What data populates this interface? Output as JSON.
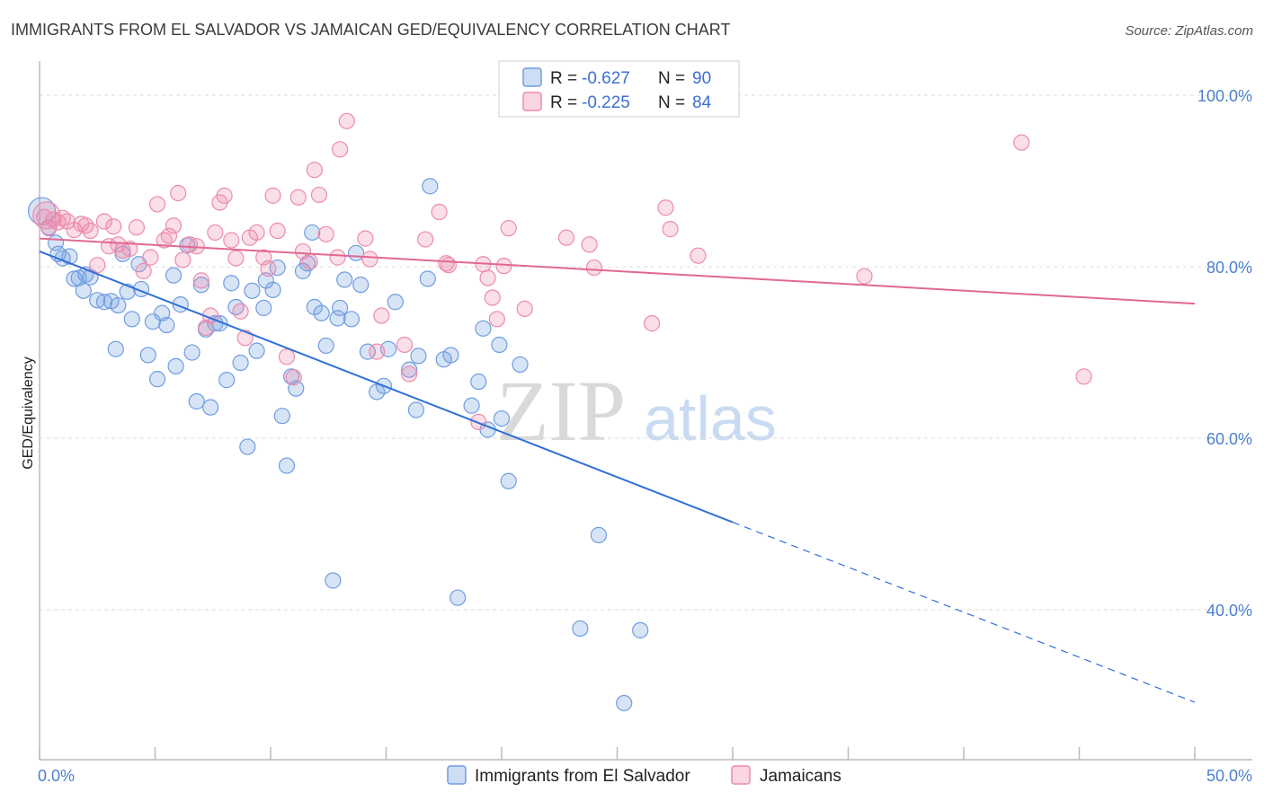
{
  "chart_data": {
    "type": "scatter",
    "title": "IMMIGRANTS FROM EL SALVADOR VS JAMAICAN GED/EQUIVALENCY CORRELATION CHART",
    "source": "Source: ZipAtlas.com",
    "ylabel": "GED/Equivalency",
    "xlim": [
      0,
      50
    ],
    "ylim": [
      22.5,
      104
    ],
    "x_tick_labels": [
      {
        "value": 0,
        "label": "0.0%"
      },
      {
        "value": 50,
        "label": "50.0%"
      }
    ],
    "y_tick_labels": [
      {
        "value": 100,
        "label": "100.0%"
      },
      {
        "value": 80,
        "label": "80.0%"
      },
      {
        "value": 60,
        "label": "60.0%"
      },
      {
        "value": 40,
        "label": "40.0%"
      }
    ],
    "legend_stats": [
      {
        "r_label": "R = ",
        "r_value": "-0.627",
        "n_label": "N = ",
        "n_value": "90",
        "color": "#6f9de0"
      },
      {
        "r_label": "R = ",
        "r_value": "-0.225",
        "n_label": "N = ",
        "n_value": "84",
        "color": "#ee8aac"
      }
    ],
    "watermark": {
      "zip": "ZIP",
      "atlas": "atlas"
    },
    "series": [
      {
        "name": "Immigrants from El Salvador",
        "color": "#6f9de0",
        "fill": "rgba(111,157,224,0.28)",
        "trend": {
          "x0": 0,
          "y0": 81.8,
          "x1": 30,
          "y1": 50.2,
          "dash_x1": 50,
          "dash_y1": 29.2
        },
        "points": [
          [
            0.1,
            86.5
          ],
          [
            0.7,
            82.8
          ],
          [
            0.8,
            81.5
          ],
          [
            1.0,
            81.0
          ],
          [
            1.3,
            81.2
          ],
          [
            1.5,
            78.6
          ],
          [
            1.7,
            78.7
          ],
          [
            1.9,
            77.2
          ],
          [
            2.2,
            78.8
          ],
          [
            2.5,
            76.1
          ],
          [
            2.8,
            75.9
          ],
          [
            3.1,
            76.0
          ],
          [
            3.4,
            75.5
          ],
          [
            3.6,
            81.5
          ],
          [
            3.3,
            70.4
          ],
          [
            3.8,
            77.1
          ],
          [
            4.0,
            73.9
          ],
          [
            4.3,
            80.3
          ],
          [
            4.4,
            77.4
          ],
          [
            4.7,
            69.7
          ],
          [
            4.9,
            73.6
          ],
          [
            5.1,
            66.9
          ],
          [
            5.3,
            74.6
          ],
          [
            5.5,
            73.2
          ],
          [
            5.8,
            79.0
          ],
          [
            5.9,
            68.4
          ],
          [
            6.1,
            75.6
          ],
          [
            6.4,
            82.5
          ],
          [
            6.6,
            70.0
          ],
          [
            6.8,
            64.3
          ],
          [
            7.0,
            77.9
          ],
          [
            7.2,
            72.7
          ],
          [
            7.4,
            63.6
          ],
          [
            7.6,
            73.4
          ],
          [
            7.8,
            73.4
          ],
          [
            8.1,
            66.8
          ],
          [
            8.3,
            78.1
          ],
          [
            8.5,
            75.3
          ],
          [
            8.7,
            68.8
          ],
          [
            9.0,
            59.0
          ],
          [
            9.2,
            77.2
          ],
          [
            9.4,
            70.2
          ],
          [
            9.7,
            75.2
          ],
          [
            9.8,
            78.4
          ],
          [
            10.1,
            77.3
          ],
          [
            10.3,
            79.9
          ],
          [
            10.5,
            62.6
          ],
          [
            10.7,
            56.8
          ],
          [
            10.9,
            67.2
          ],
          [
            11.1,
            65.8
          ],
          [
            11.4,
            79.5
          ],
          [
            11.6,
            80.4
          ],
          [
            11.8,
            84.0
          ],
          [
            11.9,
            75.3
          ],
          [
            12.2,
            74.6
          ],
          [
            12.4,
            70.8
          ],
          [
            12.7,
            43.4
          ],
          [
            12.9,
            74.0
          ],
          [
            13.0,
            75.2
          ],
          [
            13.2,
            78.5
          ],
          [
            13.5,
            73.9
          ],
          [
            13.7,
            81.6
          ],
          [
            13.9,
            77.9
          ],
          [
            14.2,
            70.1
          ],
          [
            14.6,
            65.4
          ],
          [
            14.9,
            66.1
          ],
          [
            15.1,
            70.4
          ],
          [
            15.4,
            75.9
          ],
          [
            16.0,
            68.0
          ],
          [
            16.3,
            63.3
          ],
          [
            16.4,
            69.6
          ],
          [
            16.8,
            78.6
          ],
          [
            16.9,
            89.4
          ],
          [
            17.5,
            69.2
          ],
          [
            17.8,
            69.7
          ],
          [
            18.1,
            41.4
          ],
          [
            18.7,
            63.8
          ],
          [
            19.0,
            66.6
          ],
          [
            19.2,
            72.8
          ],
          [
            19.4,
            61.0
          ],
          [
            19.9,
            70.9
          ],
          [
            20.0,
            62.3
          ],
          [
            20.3,
            55.0
          ],
          [
            20.8,
            68.6
          ],
          [
            23.4,
            37.8
          ],
          [
            24.2,
            48.7
          ],
          [
            25.3,
            29.1
          ],
          [
            26.0,
            37.6
          ],
          [
            0.4,
            84.6
          ],
          [
            2.0,
            79.1
          ]
        ]
      },
      {
        "name": "Jamaicans",
        "color": "#ee8aac",
        "fill": "rgba(238,138,172,0.28)",
        "trend": {
          "x0": 0,
          "y0": 83.3,
          "x1": 50,
          "y1": 75.7
        },
        "points": [
          [
            0.2,
            85.8
          ],
          [
            0.4,
            84.5
          ],
          [
            0.6,
            85.5
          ],
          [
            0.8,
            85.2
          ],
          [
            1.0,
            85.7
          ],
          [
            1.2,
            85.3
          ],
          [
            1.5,
            84.3
          ],
          [
            1.8,
            85.0
          ],
          [
            2.0,
            84.8
          ],
          [
            2.2,
            84.2
          ],
          [
            2.5,
            80.2
          ],
          [
            2.8,
            85.3
          ],
          [
            3.0,
            82.4
          ],
          [
            3.2,
            84.7
          ],
          [
            3.4,
            82.6
          ],
          [
            3.6,
            81.9
          ],
          [
            3.9,
            82.1
          ],
          [
            4.2,
            84.6
          ],
          [
            4.5,
            79.5
          ],
          [
            4.8,
            81.1
          ],
          [
            5.1,
            87.3
          ],
          [
            5.4,
            83.1
          ],
          [
            5.6,
            83.6
          ],
          [
            5.8,
            84.8
          ],
          [
            6.0,
            88.6
          ],
          [
            6.2,
            80.8
          ],
          [
            6.5,
            82.6
          ],
          [
            6.8,
            82.4
          ],
          [
            7.0,
            78.4
          ],
          [
            7.2,
            72.9
          ],
          [
            7.4,
            74.3
          ],
          [
            7.6,
            84.0
          ],
          [
            7.8,
            87.5
          ],
          [
            8.0,
            88.3
          ],
          [
            8.3,
            83.1
          ],
          [
            8.5,
            81.0
          ],
          [
            8.7,
            74.8
          ],
          [
            8.9,
            71.7
          ],
          [
            9.1,
            83.4
          ],
          [
            9.4,
            84.0
          ],
          [
            9.7,
            81.1
          ],
          [
            9.9,
            79.8
          ],
          [
            10.1,
            88.3
          ],
          [
            10.3,
            84.2
          ],
          [
            10.7,
            69.5
          ],
          [
            11.0,
            67.1
          ],
          [
            11.2,
            88.1
          ],
          [
            11.4,
            81.8
          ],
          [
            11.7,
            80.6
          ],
          [
            11.9,
            91.3
          ],
          [
            12.1,
            88.4
          ],
          [
            12.4,
            83.8
          ],
          [
            12.9,
            81.1
          ],
          [
            13.0,
            93.7
          ],
          [
            13.3,
            97.0
          ],
          [
            14.1,
            83.3
          ],
          [
            14.3,
            80.9
          ],
          [
            14.8,
            74.3
          ],
          [
            14.6,
            70.1
          ],
          [
            15.8,
            70.9
          ],
          [
            16.0,
            67.5
          ],
          [
            16.7,
            83.2
          ],
          [
            17.3,
            86.4
          ],
          [
            17.6,
            80.4
          ],
          [
            17.7,
            80.2
          ],
          [
            19.0,
            61.9
          ],
          [
            19.2,
            80.3
          ],
          [
            19.4,
            78.7
          ],
          [
            19.6,
            76.4
          ],
          [
            19.8,
            73.9
          ],
          [
            20.1,
            80.1
          ],
          [
            20.3,
            84.5
          ],
          [
            21.0,
            75.1
          ],
          [
            22.8,
            83.4
          ],
          [
            23.8,
            82.6
          ],
          [
            24.0,
            79.9
          ],
          [
            26.5,
            73.4
          ],
          [
            27.1,
            86.9
          ],
          [
            27.3,
            84.4
          ],
          [
            28.5,
            81.3
          ],
          [
            35.7,
            78.9
          ],
          [
            42.5,
            94.5
          ],
          [
            45.2,
            67.2
          ],
          [
            0.3,
            86.0
          ]
        ]
      }
    ]
  }
}
